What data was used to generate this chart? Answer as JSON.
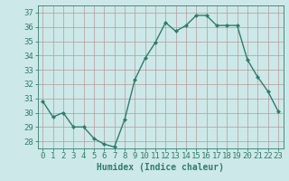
{
  "x": [
    0,
    1,
    2,
    3,
    4,
    5,
    6,
    7,
    8,
    9,
    10,
    11,
    12,
    13,
    14,
    15,
    16,
    17,
    18,
    19,
    20,
    21,
    22,
    23
  ],
  "y": [
    30.8,
    29.7,
    30.0,
    29.0,
    29.0,
    28.2,
    27.8,
    27.6,
    29.5,
    32.3,
    33.8,
    34.9,
    36.3,
    35.7,
    36.1,
    36.8,
    36.8,
    36.1,
    36.1,
    36.1,
    33.7,
    32.5,
    31.5,
    30.1
  ],
  "line_color": "#2e7d6e",
  "marker": "D",
  "markersize": 2.0,
  "linewidth": 1.0,
  "bg_color": "#cde8e8",
  "grid_color": "#b89898",
  "xlabel": "Humidex (Indice chaleur)",
  "xlabel_fontsize": 7,
  "tick_fontsize": 6.5,
  "ylim": [
    27.5,
    37.5
  ],
  "yticks": [
    28,
    29,
    30,
    31,
    32,
    33,
    34,
    35,
    36,
    37
  ],
  "xticks": [
    0,
    1,
    2,
    3,
    4,
    5,
    6,
    7,
    8,
    9,
    10,
    11,
    12,
    13,
    14,
    15,
    16,
    17,
    18,
    19,
    20,
    21,
    22,
    23
  ]
}
